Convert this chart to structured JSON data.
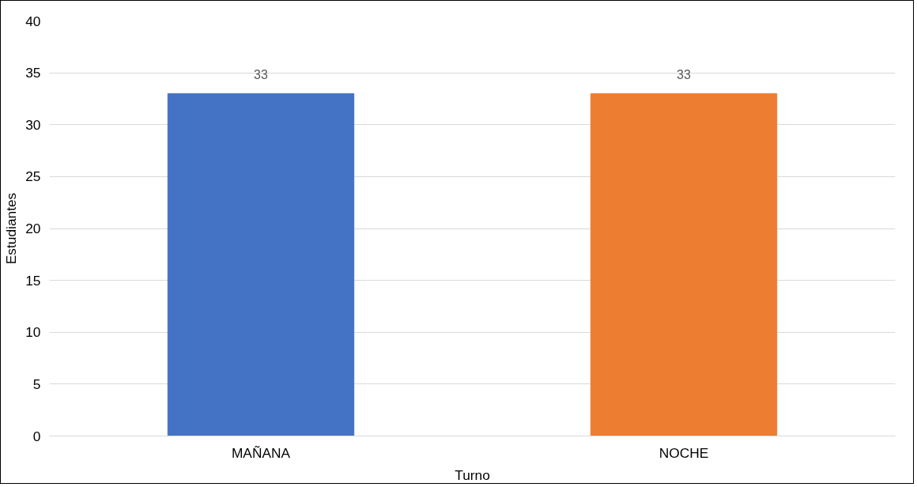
{
  "chart_data": {
    "type": "bar",
    "xlabel": "Turno",
    "ylabel": "Estudiantes",
    "categories": [
      "MAÑANA",
      "NOCHE"
    ],
    "values": [
      33,
      33
    ],
    "colors": [
      "#4472c4",
      "#ed7d31"
    ],
    "ylim": [
      0,
      40
    ],
    "yticks": [
      0,
      5,
      10,
      15,
      20,
      25,
      30,
      35,
      40
    ],
    "grid": "y",
    "data_labels": true
  }
}
